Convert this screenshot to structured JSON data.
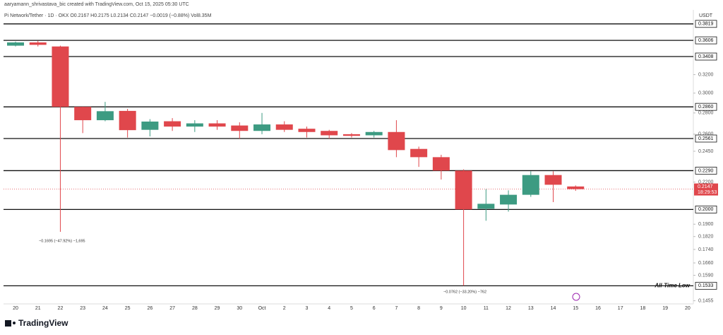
{
  "chart_data": {
    "type": "candlestick",
    "title": "aaryamann_shrivastava_bic created with TradingView.com, Oct 15, 2025 05:30 UTC",
    "subtitle": "Pi Network/Tether · 1D · OKX  O0.2167 H0.2175 L0.2134 C0.2147 −0.0019 (−0.88%) Vol8.35M",
    "currency": "USDT",
    "categories": [
      "20",
      "21",
      "22",
      "23",
      "24",
      "25",
      "26",
      "27",
      "28",
      "29",
      "30",
      "Oct",
      "2",
      "3",
      "4",
      "5",
      "6",
      "7",
      "8",
      "9",
      "10",
      "11",
      "12",
      "13",
      "14",
      "15",
      "16",
      "17",
      "18",
      "19",
      "20"
    ],
    "open": [
      0.354,
      0.358,
      0.353,
      0.286,
      0.273,
      0.282,
      0.264,
      0.272,
      0.267,
      0.27,
      0.268,
      0.263,
      0.269,
      0.265,
      0.263,
      0.26,
      0.259,
      0.262,
      0.247,
      0.24,
      0.229,
      0.2005,
      0.2035,
      0.2105,
      0.2255,
      0.2167,
      null,
      null,
      null,
      null,
      null
    ],
    "high": [
      0.359,
      0.36,
      0.354,
      0.286,
      0.291,
      0.284,
      0.274,
      0.275,
      0.273,
      0.273,
      0.271,
      0.28,
      0.272,
      0.267,
      0.264,
      0.261,
      0.263,
      0.273,
      0.249,
      0.242,
      0.23,
      0.2147,
      0.2138,
      0.2285,
      0.2285,
      0.2175,
      null,
      null,
      null,
      null,
      null
    ],
    "low": [
      0.353,
      0.353,
      0.185,
      0.261,
      0.272,
      0.257,
      0.258,
      0.263,
      0.262,
      0.264,
      0.256,
      0.26,
      0.262,
      0.257,
      0.256,
      0.257,
      0.257,
      0.24,
      0.232,
      0.222,
      0.1533,
      0.1923,
      0.1985,
      0.209,
      0.2052,
      0.2134,
      null,
      null,
      null,
      null,
      null
    ],
    "close": [
      0.358,
      0.355,
      0.286,
      0.273,
      0.2817,
      0.2637,
      0.2717,
      0.267,
      0.27,
      0.267,
      0.263,
      0.269,
      0.264,
      0.262,
      0.259,
      0.2585,
      0.262,
      0.246,
      0.24,
      0.229,
      0.2,
      0.204,
      0.2105,
      0.2255,
      0.218,
      0.2147,
      null,
      null,
      null,
      null,
      null
    ],
    "up_color": "#3d9b82",
    "down_color": "#e0474c",
    "log_scale": true,
    "ylim": [
      0.1425,
      0.4
    ],
    "yticks": [
      0.3819,
      0.3606,
      0.3408,
      {
        "value": 0.32,
        "label": "0.3200"
      },
      {
        "value": 0.3,
        "label": "0.3000"
      },
      {
        "value": 0.286,
        "label": "0.2860"
      },
      {
        "value": 0.28,
        "label": "0.2800"
      },
      {
        "value": 0.26,
        "label": "0.2600"
      },
      0.2561,
      {
        "value": 0.245,
        "label": "0.2450"
      },
      {
        "value": 0.229,
        "label": "0.2290"
      },
      {
        "value": 0.22,
        "label": "0.2200"
      },
      {
        "value": 0.2,
        "label": "0.2000"
      },
      {
        "value": 0.19,
        "label": "0.1900"
      },
      {
        "value": 0.182,
        "label": "0.1820"
      },
      {
        "value": 0.174,
        "label": "0.1740"
      },
      {
        "value": 0.166,
        "label": "0.1660"
      },
      {
        "value": 0.159,
        "label": "0.1590"
      },
      0.1533,
      0.1455
    ],
    "levels": [
      0.3819,
      0.3606,
      0.3408,
      0.286,
      0.2561,
      0.229,
      0.2,
      0.1533
    ],
    "last_price": 0.2147,
    "countdown": "18:29:53",
    "annotations": [
      "−0.1695 (−47.92%) −1,695",
      "−0.0762 (−33.20%) −762",
      "All-Time Low"
    ],
    "footer": "TradingView"
  }
}
